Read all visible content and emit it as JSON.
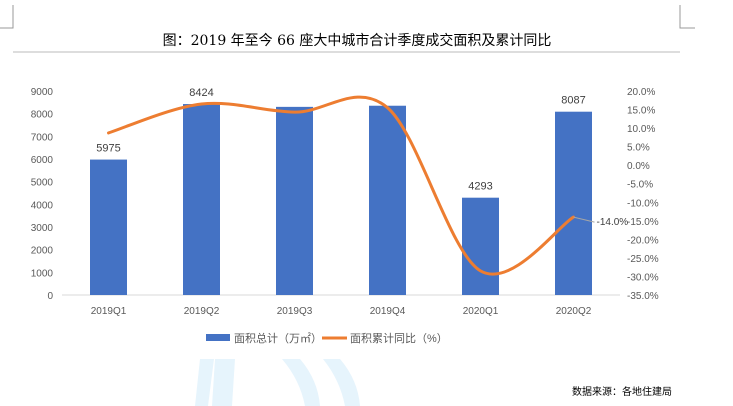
{
  "chart_data": {
    "type": "bar",
    "title": "图：2019 年至今 66 座大中城市合计季度成交面积及累计同比",
    "categories": [
      "2019Q1",
      "2019Q2",
      "2019Q3",
      "2019Q4",
      "2020Q1",
      "2020Q2"
    ],
    "series": [
      {
        "name": "面积总计（万㎡）",
        "type": "bar",
        "axis": "left",
        "color": "#4472C4",
        "values": [
          5975,
          8424,
          8300,
          8350,
          4293,
          8087
        ],
        "data_labels": [
          "5975",
          "8424",
          "",
          "",
          "4293",
          "8087"
        ]
      },
      {
        "name": "面积累计同比（%）",
        "type": "line",
        "axis": "right",
        "color": "#ED7D31",
        "values": [
          8.7,
          16.5,
          14.3,
          15.5,
          -28.5,
          -14.0
        ],
        "data_labels": [
          "",
          "",
          "",
          "",
          "",
          "-14.0%"
        ]
      }
    ],
    "y_left": {
      "range": [
        0,
        9000
      ],
      "ticks": [
        "0",
        "1000",
        "2000",
        "3000",
        "4000",
        "5000",
        "6000",
        "7000",
        "8000",
        "9000"
      ]
    },
    "y_right": {
      "range": [
        -35,
        20
      ],
      "ticks": [
        "-35.0%",
        "-30.0%",
        "-25.0%",
        "-20.0%",
        "-15.0%",
        "-10.0%",
        "-5.0%",
        "0.0%",
        "5.0%",
        "10.0%",
        "15.0%",
        "20.0%"
      ]
    },
    "grid": false,
    "legend": "bottom",
    "source": "数据来源：各地住建局"
  }
}
